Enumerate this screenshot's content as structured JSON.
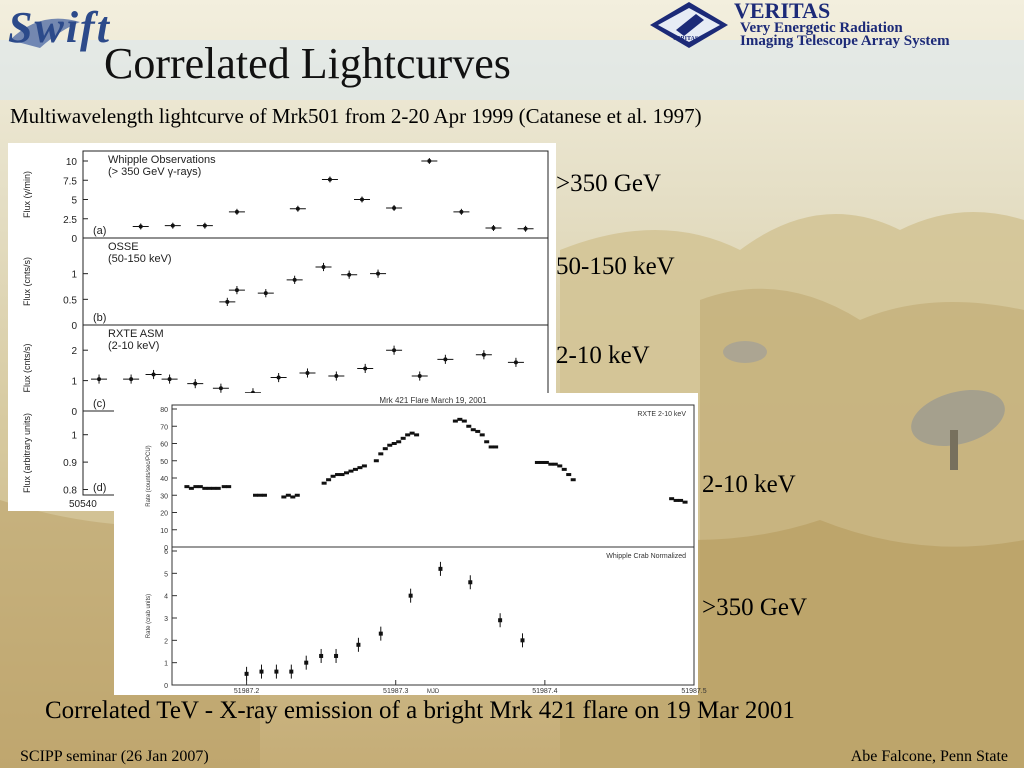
{
  "slide": {
    "title": "Correlated Lightcurves",
    "subtitle": "Multiwavelength lightcurve of Mrk501 from 2-20 Apr 1999 (Catanese et al. 1997)",
    "caption": "Correlated TeV - X-ray emission of a bright Mrk 421 flare on 19 Mar 2001",
    "footer_left": "SCIPP seminar (26 Jan 2007)",
    "footer_right": "Abe Falcone, Penn State",
    "logos": {
      "swift": "Swift",
      "veritas_name": "VERITAS",
      "veritas_line1": "Very Energetic Radiation",
      "veritas_line2": "Imaging Telescope Array System",
      "veritas_badge": "VERITAS"
    },
    "band_labels_top": [
      ">350 GeV",
      "50-150 keV",
      "2-10 keV"
    ],
    "band_labels_bottom": [
      "2-10 keV",
      ">350 GeV"
    ]
  },
  "chart_data": [
    {
      "type": "scatter",
      "panel": "(a)",
      "title": "Whipple Observations",
      "subtitle": "(> 350 GeV γ-rays)",
      "ylabel": "Flux (γ/min)",
      "ylim": [
        0,
        10
      ],
      "yticks": [
        "0",
        "2.5",
        "5",
        "7.5",
        "10"
      ],
      "x": [
        50541.3,
        50542.3,
        50543.3,
        50544.3,
        50546.2,
        50547.2,
        50548.2,
        50549.2,
        50550.3,
        50551.3,
        50552.3,
        50553.3
      ],
      "y": [
        1.5,
        1.6,
        1.6,
        3.4,
        3.8,
        7.6,
        5.0,
        3.9,
        10.0,
        3.4,
        1.3,
        1.2
      ]
    },
    {
      "type": "scatter",
      "panel": "(b)",
      "title": "OSSE",
      "subtitle": "(50-150 keV)",
      "ylabel": "Flux (cnts/s)",
      "ylim": [
        0,
        1.5
      ],
      "yticks": [
        "0",
        "0.5",
        "1"
      ],
      "x": [
        50544.0,
        50544.3,
        50545.2,
        50546.1,
        50547.0,
        50547.8,
        50548.7
      ],
      "y": [
        0.45,
        0.68,
        0.62,
        0.88,
        1.13,
        0.98,
        1.0
      ]
    },
    {
      "type": "scatter",
      "panel": "(c)",
      "title": "RXTE ASM",
      "subtitle": "(2-10 keV)",
      "ylabel": "Flux (cnts/s)",
      "ylim": [
        0,
        2.5
      ],
      "yticks": [
        "0",
        "1",
        "2"
      ],
      "x": [
        50540.0,
        50541.0,
        50541.7,
        50542.2,
        50543.0,
        50543.8,
        50544.8,
        50545.6,
        50546.5,
        50547.4,
        50548.3,
        50549.2,
        50550.0,
        50550.8,
        50552.0,
        50553.0
      ],
      "y": [
        1.05,
        1.05,
        1.2,
        1.05,
        0.9,
        0.75,
        0.6,
        1.1,
        1.25,
        1.15,
        1.4,
        2.0,
        1.15,
        1.7,
        1.85,
        1.6
      ]
    },
    {
      "type": "scatter",
      "panel": "(d)",
      "ylabel": "Flux (arbitrary units)",
      "yticks": [
        "0.8",
        "0.9",
        "1"
      ],
      "xticks": [
        "50540"
      ]
    },
    {
      "type": "scatter",
      "title": "Mrk 421 Flare March 19, 2001",
      "series_label": "RXTE 2-10 keV",
      "ylabel": "Rate (counts/sec/PCU)",
      "ylim": [
        0,
        80
      ],
      "yticks": [
        "0",
        "10",
        "20",
        "30",
        "40",
        "50",
        "60",
        "70",
        "80"
      ],
      "x": [
        51987.16,
        51987.163,
        51987.166,
        51987.169,
        51987.172,
        51987.175,
        51987.178,
        51987.181,
        51987.185,
        51987.188,
        51987.206,
        51987.209,
        51987.212,
        51987.225,
        51987.228,
        51987.231,
        51987.234,
        51987.252,
        51987.255,
        51987.258,
        51987.261,
        51987.264,
        51987.267,
        51987.27,
        51987.273,
        51987.276,
        51987.279,
        51987.287,
        51987.29,
        51987.293,
        51987.296,
        51987.299,
        51987.302,
        51987.305,
        51987.308,
        51987.311,
        51987.314,
        51987.34,
        51987.343,
        51987.346,
        51987.349,
        51987.352,
        51987.355,
        51987.358,
        51987.361,
        51987.364,
        51987.367,
        51987.395,
        51987.398,
        51987.401,
        51987.404,
        51987.407,
        51987.41,
        51987.413,
        51987.416,
        51987.419,
        51987.485,
        51987.488,
        51987.491,
        51987.494
      ],
      "y": [
        35,
        34,
        35,
        35,
        34,
        34,
        34,
        34,
        35,
        35,
        30,
        30,
        30,
        29,
        30,
        29,
        30,
        37,
        39,
        41,
        42,
        42,
        43,
        44,
        45,
        46,
        47,
        50,
        54,
        57,
        59,
        60,
        61,
        63,
        65,
        66,
        65,
        73,
        74,
        73,
        70,
        68,
        67,
        65,
        61,
        58,
        58,
        49,
        49,
        49,
        48,
        48,
        47,
        45,
        42,
        39,
        28,
        27,
        27,
        26
      ]
    },
    {
      "type": "scatter",
      "series_label": "Whipple Crab Normalized",
      "ylabel": "Rate (crab units)",
      "xlabel": "MJD",
      "xlim": [
        51987.15,
        51987.5
      ],
      "ylim": [
        0,
        6
      ],
      "yticks": [
        "0",
        "1",
        "2",
        "3",
        "4",
        "5",
        "6"
      ],
      "xticks": [
        "51987.2",
        "51987.3",
        "51987.4",
        "51987.5"
      ],
      "x": [
        51987.2,
        51987.21,
        51987.22,
        51987.23,
        51987.24,
        51987.25,
        51987.26,
        51987.275,
        51987.29,
        51987.31,
        51987.33,
        51987.35,
        51987.37,
        51987.385
      ],
      "y": [
        0.5,
        0.6,
        0.6,
        0.6,
        1.0,
        1.3,
        1.3,
        1.8,
        2.3,
        4.0,
        5.2,
        4.6,
        2.9,
        2.0
      ]
    }
  ]
}
